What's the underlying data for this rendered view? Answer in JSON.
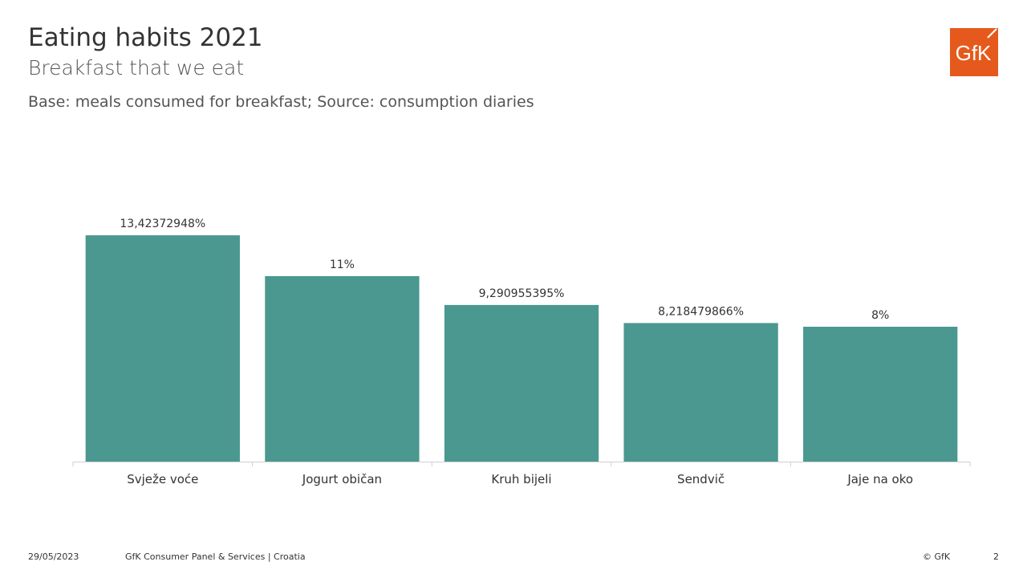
{
  "header": {
    "title": "Eating habits 2021",
    "subtitle": "Breakfast that we eat",
    "base_note": "Base: meals consumed for breakfast; Source: consumption diaries",
    "logo_text": "GfK",
    "logo_color": "#e55a1c"
  },
  "chart_data": {
    "type": "bar",
    "title": "",
    "xlabel": "",
    "ylabel": "",
    "categories": [
      "Svježe voće",
      "Jogurt običan",
      "Kruh bijeli",
      "Sendvič",
      "Jaje na oko"
    ],
    "values": [
      13.42372948,
      11,
      9.290955395,
      8.218479866,
      8
    ],
    "data_labels": [
      "13,42372948%",
      "11%",
      "9,290955395%",
      "8,218479866%",
      "8%"
    ],
    "ylim": [
      0,
      15
    ],
    "grid": false,
    "legend": "none",
    "bar_color": "#4a9890"
  },
  "footer": {
    "date": "29/05/2023",
    "company": "GfK Consumer Panel & Services | Croatia",
    "copyright": "© GfK",
    "page": "2"
  }
}
